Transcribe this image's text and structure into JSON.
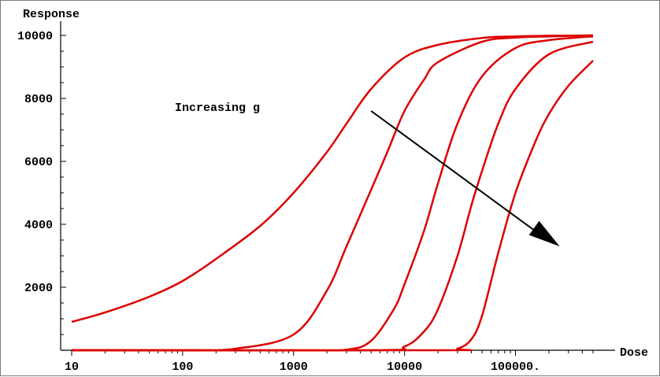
{
  "chart_data": {
    "type": "line",
    "title": "",
    "xlabel": "Dose",
    "ylabel": "Response",
    "x_scale": "log",
    "xlim": [
      10,
      500000
    ],
    "ylim": [
      0,
      10000
    ],
    "x_ticks": [
      {
        "value": 10,
        "label": "10"
      },
      {
        "value": 100,
        "label": "100"
      },
      {
        "value": 1000,
        "label": "1000"
      },
      {
        "value": 10000,
        "label": "10000"
      },
      {
        "value": 100000,
        "label": "100000."
      }
    ],
    "y_ticks": [
      {
        "value": 2000,
        "label": "2000"
      },
      {
        "value": 4000,
        "label": "4000"
      },
      {
        "value": 6000,
        "label": "6000"
      },
      {
        "value": 8000,
        "label": "8000"
      },
      {
        "value": 10000,
        "label": "10000"
      }
    ],
    "series_color": "#dd0000",
    "series": [
      {
        "x": [
          10,
          20,
          50,
          100,
          200,
          500,
          1000,
          2000,
          3000,
          5000,
          10000,
          20000,
          50000,
          100000,
          200000,
          500000
        ],
        "y": [
          900,
          1200,
          1700,
          2200,
          2900,
          3950,
          5000,
          6300,
          7200,
          8300,
          9300,
          9700,
          9920,
          9970,
          9990,
          10000
        ]
      },
      {
        "x": [
          10,
          100,
          300,
          1000,
          2000,
          3000,
          5000,
          7000,
          10000,
          15000,
          20000,
          50000,
          100000,
          200000,
          500000
        ],
        "y": [
          0,
          0,
          50,
          500,
          1900,
          3300,
          5100,
          6300,
          7600,
          8600,
          9150,
          9800,
          9930,
          9970,
          10000
        ]
      },
      {
        "x": [
          10,
          1000,
          3000,
          5000,
          8000,
          10000,
          15000,
          20000,
          30000,
          50000,
          100000,
          200000,
          500000
        ],
        "y": [
          0,
          0,
          20,
          300,
          1300,
          2100,
          3800,
          5300,
          7200,
          8700,
          9600,
          9850,
          9970
        ]
      },
      {
        "x": [
          10,
          5000,
          10000,
          15000,
          20000,
          30000,
          40000,
          50000,
          70000,
          100000,
          200000,
          500000
        ],
        "y": [
          0,
          0,
          120,
          600,
          1300,
          3000,
          4600,
          5700,
          7200,
          8300,
          9400,
          9800
        ]
      },
      {
        "x": [
          10,
          20000,
          30000,
          40000,
          50000,
          70000,
          100000,
          150000,
          200000,
          300000,
          500000
        ],
        "y": [
          0,
          0,
          50,
          350,
          1100,
          3100,
          5000,
          6600,
          7500,
          8400,
          9200
        ]
      }
    ],
    "annotations": [
      {
        "text": "Increasing g",
        "arrow_from": [
          5000,
          7600
        ],
        "arrow_to": [
          250000,
          3300
        ]
      }
    ]
  }
}
